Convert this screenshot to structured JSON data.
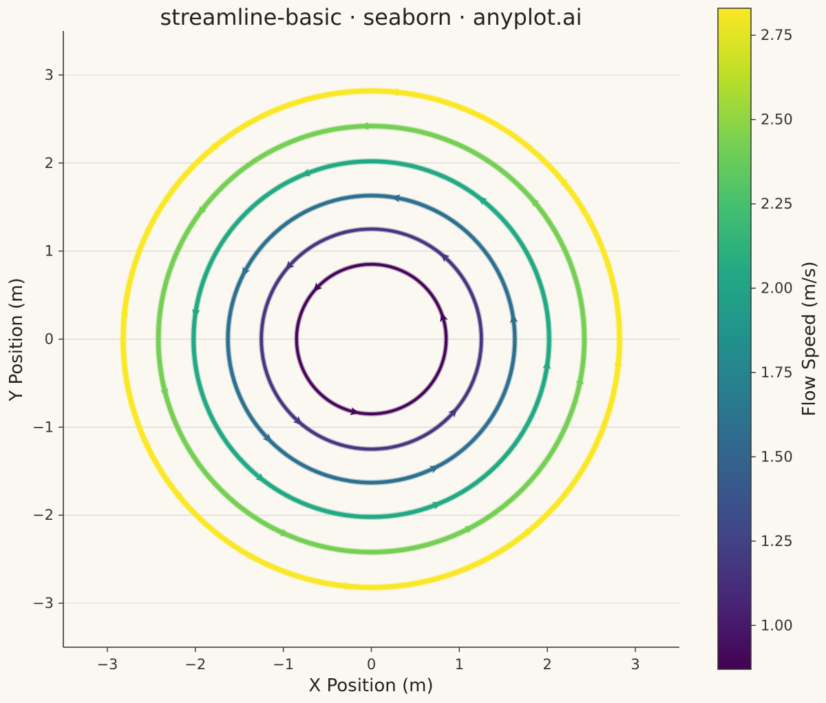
{
  "chart_data": {
    "type": "streamline",
    "title": "streamline-basic · seaborn · anyplot.ai",
    "xlabel": "X Position (m)",
    "ylabel": "Y Position (m)",
    "xlim": [
      -3.5,
      3.5
    ],
    "ylim": [
      -3.5,
      3.5
    ],
    "xticks": [
      -3,
      -2,
      -1,
      0,
      1,
      2,
      3
    ],
    "yticks": [
      -3,
      -2,
      -1,
      0,
      1,
      2,
      3
    ],
    "xtick_labels": [
      "−3",
      "−2",
      "−1",
      "0",
      "1",
      "2",
      "3"
    ],
    "ytick_labels": [
      "−3",
      "−2",
      "−1",
      "0",
      "1",
      "2",
      "3"
    ],
    "grid": "horizontal",
    "flow": "counter-clockwise rotation about the origin",
    "streamlines": [
      {
        "radius": 0.85,
        "speed": 0.9
      },
      {
        "radius": 1.25,
        "speed": 1.18
      },
      {
        "radius": 1.63,
        "speed": 1.58
      },
      {
        "radius": 2.02,
        "speed": 2.05
      },
      {
        "radius": 2.42,
        "speed": 2.42
      },
      {
        "radius": 2.82,
        "speed": 2.82
      }
    ],
    "colorbar": {
      "label": "Flow Speed (m/s)",
      "colormap": "viridis",
      "range": [
        0.87,
        2.83
      ],
      "ticks": [
        1.0,
        1.25,
        1.5,
        1.75,
        2.0,
        2.25,
        2.5,
        2.75
      ],
      "tick_labels": [
        "1.00",
        "1.25",
        "1.50",
        "1.75",
        "2.00",
        "2.25",
        "2.50",
        "2.75"
      ]
    },
    "colors": {
      "background": "#FAF8F1",
      "grid": "#DDDAD2",
      "axis": "#333333"
    }
  }
}
